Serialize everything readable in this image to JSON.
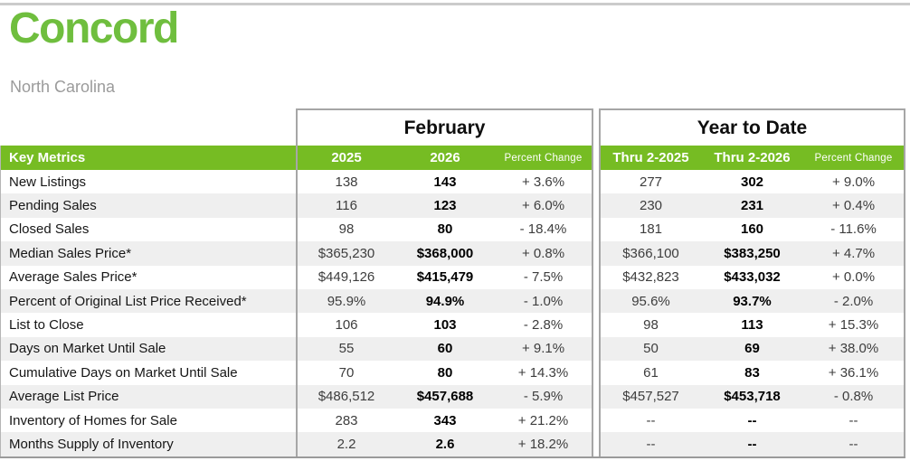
{
  "page": {
    "title": "Concord",
    "subtitle": "North Carolina"
  },
  "colors": {
    "title_green": "#6FBE3E",
    "header_green": "#76BC23",
    "stripe_gray": "#EFEFEF",
    "border_gray": "#A6A6A6",
    "top_rule_gray": "#CBCBCB"
  },
  "table": {
    "group_headers": {
      "month": "February",
      "ytd": "Year to Date"
    },
    "columns": {
      "key_metrics": "Key Metrics",
      "month_prior": "2025",
      "month_current": "2026",
      "month_change": "Percent Change",
      "ytd_prior": "Thru 2-2025",
      "ytd_current": "Thru 2-2026",
      "ytd_change": "Percent Change"
    },
    "rows": [
      {
        "label": "New Listings",
        "m_prior": "138",
        "m_curr": "143",
        "m_chg": "+ 3.6%",
        "y_prior": "277",
        "y_curr": "302",
        "y_chg": "+ 9.0%"
      },
      {
        "label": "Pending Sales",
        "m_prior": "116",
        "m_curr": "123",
        "m_chg": "+ 6.0%",
        "y_prior": "230",
        "y_curr": "231",
        "y_chg": "+ 0.4%"
      },
      {
        "label": "Closed Sales",
        "m_prior": "98",
        "m_curr": "80",
        "m_chg": "- 18.4%",
        "y_prior": "181",
        "y_curr": "160",
        "y_chg": "- 11.6%"
      },
      {
        "label": "Median Sales Price*",
        "m_prior": "$365,230",
        "m_curr": "$368,000",
        "m_chg": "+ 0.8%",
        "y_prior": "$366,100",
        "y_curr": "$383,250",
        "y_chg": "+ 4.7%"
      },
      {
        "label": "Average Sales Price*",
        "m_prior": "$449,126",
        "m_curr": "$415,479",
        "m_chg": "- 7.5%",
        "y_prior": "$432,823",
        "y_curr": "$433,032",
        "y_chg": "+ 0.0%"
      },
      {
        "label": "Percent of Original List Price Received*",
        "m_prior": "95.9%",
        "m_curr": "94.9%",
        "m_chg": "- 1.0%",
        "y_prior": "95.6%",
        "y_curr": "93.7%",
        "y_chg": "- 2.0%"
      },
      {
        "label": "List to Close",
        "m_prior": "106",
        "m_curr": "103",
        "m_chg": "- 2.8%",
        "y_prior": "98",
        "y_curr": "113",
        "y_chg": "+ 15.3%"
      },
      {
        "label": "Days on Market Until Sale",
        "m_prior": "55",
        "m_curr": "60",
        "m_chg": "+ 9.1%",
        "y_prior": "50",
        "y_curr": "69",
        "y_chg": "+ 38.0%"
      },
      {
        "label": "Cumulative Days on Market Until Sale",
        "m_prior": "70",
        "m_curr": "80",
        "m_chg": "+ 14.3%",
        "y_prior": "61",
        "y_curr": "83",
        "y_chg": "+ 36.1%"
      },
      {
        "label": "Average List Price",
        "m_prior": "$486,512",
        "m_curr": "$457,688",
        "m_chg": "- 5.9%",
        "y_prior": "$457,527",
        "y_curr": "$453,718",
        "y_chg": "- 0.8%"
      },
      {
        "label": "Inventory of Homes for Sale",
        "m_prior": "283",
        "m_curr": "343",
        "m_chg": "+ 21.2%",
        "y_prior": "--",
        "y_curr": "--",
        "y_chg": "--"
      },
      {
        "label": "Months Supply of Inventory",
        "m_prior": "2.2",
        "m_curr": "2.6",
        "m_chg": "+ 18.2%",
        "y_prior": "--",
        "y_curr": "--",
        "y_chg": "--"
      }
    ]
  }
}
